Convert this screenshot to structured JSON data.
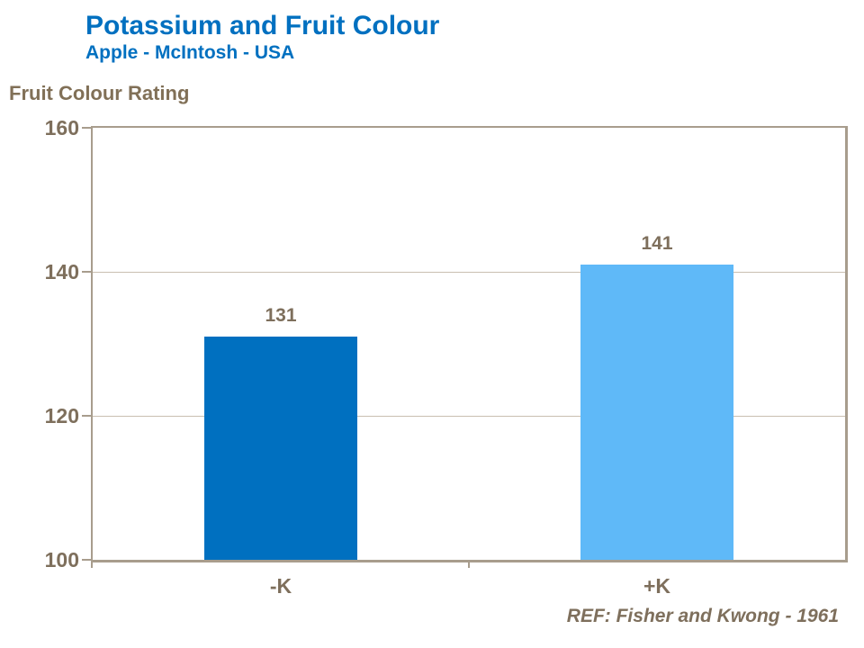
{
  "header": {
    "title": "Potassium and Fruit Colour",
    "subtitle": "Apple - McIntosh - USA"
  },
  "footer": {
    "reference": "REF: Fisher and Kwong - 1961"
  },
  "colors": {
    "title_blue": "#0070C0",
    "text_taupe": "#7E6F5C",
    "axis_line": "#A89D8D",
    "gridline": "#C9BFB1"
  },
  "chart_data": {
    "type": "bar",
    "title": "Potassium and Fruit Colour",
    "subtitle": "Apple - McIntosh - USA",
    "ylabel": "Fruit Colour Rating",
    "xlabel": "",
    "categories": [
      "-K",
      "+K"
    ],
    "values": [
      131,
      141
    ],
    "bar_colors": [
      "#0070C0",
      "#5FB9F8"
    ],
    "ylim": [
      100,
      160
    ],
    "yticks": [
      100,
      120,
      140,
      160
    ],
    "grid": "horizontal",
    "legend": "none",
    "annotation": "REF: Fisher and Kwong - 1961"
  }
}
